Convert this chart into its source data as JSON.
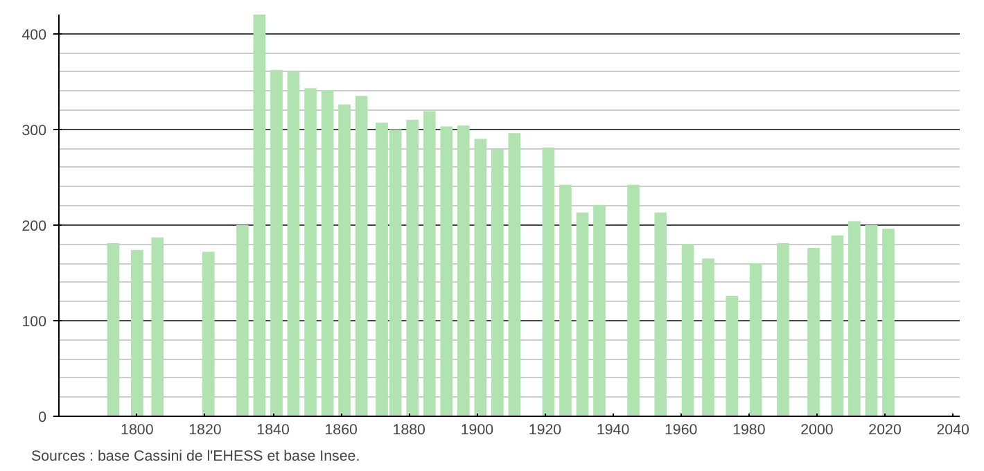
{
  "chart_data": {
    "type": "bar",
    "x": [
      1793,
      1800,
      1806,
      1821,
      1831,
      1836,
      1841,
      1846,
      1851,
      1856,
      1861,
      1866,
      1872,
      1876,
      1881,
      1886,
      1891,
      1896,
      1901,
      1906,
      1911,
      1921,
      1926,
      1931,
      1936,
      1946,
      1954,
      1962,
      1968,
      1975,
      1982,
      1990,
      1999,
      2006,
      2011,
      2016,
      2021
    ],
    "values": [
      181,
      174,
      187,
      172,
      200,
      420,
      362,
      360,
      343,
      341,
      326,
      335,
      307,
      300,
      310,
      319,
      303,
      304,
      290,
      279,
      296,
      281,
      242,
      213,
      221,
      242,
      213,
      180,
      165,
      126,
      160,
      181,
      176,
      189,
      204,
      200,
      196
    ],
    "color": "#b0e3b0",
    "xlim": [
      1777,
      2042
    ],
    "xticks": [
      1800,
      1820,
      1840,
      1860,
      1880,
      1900,
      1920,
      1940,
      1960,
      1980,
      2000,
      2020,
      2040
    ],
    "ylim": [
      0,
      420
    ],
    "yticks": [
      0,
      100,
      200,
      300,
      400
    ],
    "grid": "y",
    "annotations": [
      "Sources : base Cassini de l'EHESS et base Insee."
    ]
  }
}
